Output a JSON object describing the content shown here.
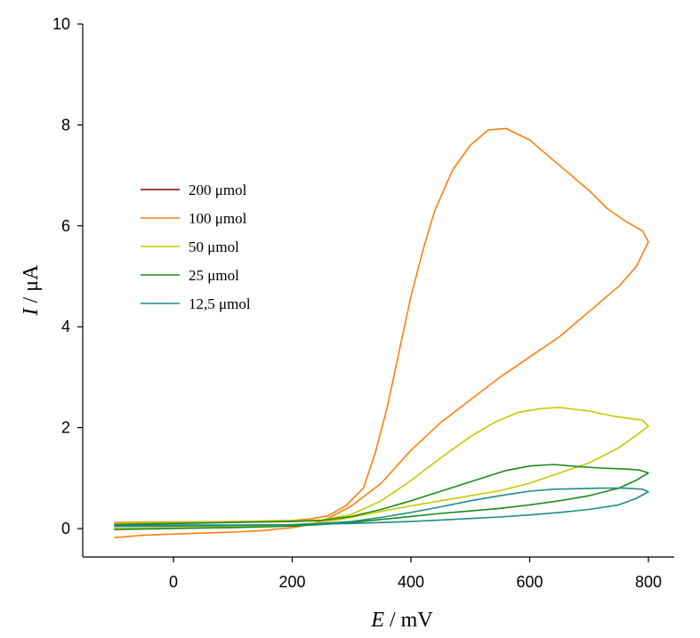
{
  "chart_data": {
    "type": "line",
    "xlabel": {
      "symbol": "E",
      "unit": " / mV"
    },
    "ylabel": {
      "symbol": "I",
      "unit": " / μA"
    },
    "xlim": [
      -150,
      880
    ],
    "ylim": [
      -0.55,
      10
    ],
    "xticks": [
      0,
      200,
      400,
      600,
      800
    ],
    "yticks": [
      0,
      2,
      4,
      6,
      8,
      10
    ],
    "grid": false,
    "legend_position": "center-left",
    "series": [
      {
        "name": "200 μmol",
        "color": "#800000",
        "points": []
      },
      {
        "name": "100 μmol",
        "color": "#ff7f0e",
        "points": [
          [
            -100,
            -0.18
          ],
          [
            -50,
            -0.13
          ],
          [
            0,
            -0.11
          ],
          [
            100,
            -0.07
          ],
          [
            150,
            -0.04
          ],
          [
            200,
            0.02
          ],
          [
            230,
            0.08
          ],
          [
            260,
            0.2
          ],
          [
            300,
            0.45
          ],
          [
            350,
            0.9
          ],
          [
            400,
            1.55
          ],
          [
            450,
            2.1
          ],
          [
            500,
            2.55
          ],
          [
            550,
            3.0
          ],
          [
            600,
            3.4
          ],
          [
            650,
            3.8
          ],
          [
            700,
            4.3
          ],
          [
            750,
            4.8
          ],
          [
            780,
            5.2
          ],
          [
            800,
            5.68
          ],
          [
            790,
            5.9
          ],
          [
            760,
            6.1
          ],
          [
            730,
            6.35
          ],
          [
            700,
            6.7
          ],
          [
            650,
            7.2
          ],
          [
            600,
            7.7
          ],
          [
            560,
            7.93
          ],
          [
            530,
            7.9
          ],
          [
            500,
            7.6
          ],
          [
            470,
            7.1
          ],
          [
            440,
            6.3
          ],
          [
            420,
            5.5
          ],
          [
            400,
            4.6
          ],
          [
            380,
            3.5
          ],
          [
            360,
            2.4
          ],
          [
            340,
            1.5
          ],
          [
            320,
            0.8
          ],
          [
            290,
            0.45
          ],
          [
            260,
            0.25
          ],
          [
            230,
            0.19
          ],
          [
            200,
            0.16
          ],
          [
            150,
            0.15
          ],
          [
            100,
            0.14
          ],
          [
            0,
            0.13
          ],
          [
            -100,
            0.12
          ]
        ]
      },
      {
        "name": "50 μmol",
        "color": "#c8c800",
        "points": [
          [
            -100,
            0.0
          ],
          [
            0,
            0.02
          ],
          [
            100,
            0.04
          ],
          [
            200,
            0.07
          ],
          [
            250,
            0.12
          ],
          [
            300,
            0.22
          ],
          [
            350,
            0.34
          ],
          [
            400,
            0.45
          ],
          [
            450,
            0.55
          ],
          [
            500,
            0.65
          ],
          [
            550,
            0.75
          ],
          [
            600,
            0.9
          ],
          [
            650,
            1.1
          ],
          [
            700,
            1.3
          ],
          [
            750,
            1.6
          ],
          [
            780,
            1.85
          ],
          [
            800,
            2.03
          ],
          [
            790,
            2.15
          ],
          [
            770,
            2.18
          ],
          [
            740,
            2.23
          ],
          [
            700,
            2.33
          ],
          [
            650,
            2.4
          ],
          [
            620,
            2.38
          ],
          [
            580,
            2.3
          ],
          [
            540,
            2.1
          ],
          [
            500,
            1.82
          ],
          [
            450,
            1.4
          ],
          [
            400,
            0.95
          ],
          [
            350,
            0.55
          ],
          [
            300,
            0.28
          ],
          [
            250,
            0.17
          ],
          [
            200,
            0.15
          ],
          [
            100,
            0.14
          ],
          [
            0,
            0.12
          ],
          [
            -100,
            0.1
          ]
        ]
      },
      {
        "name": "25 μmol",
        "color": "#1b8a1b",
        "points": [
          [
            -100,
            -0.02
          ],
          [
            0,
            0.0
          ],
          [
            100,
            0.02
          ],
          [
            200,
            0.05
          ],
          [
            250,
            0.08
          ],
          [
            300,
            0.12
          ],
          [
            350,
            0.18
          ],
          [
            400,
            0.24
          ],
          [
            450,
            0.3
          ],
          [
            500,
            0.35
          ],
          [
            550,
            0.4
          ],
          [
            600,
            0.47
          ],
          [
            650,
            0.55
          ],
          [
            700,
            0.65
          ],
          [
            750,
            0.8
          ],
          [
            780,
            0.96
          ],
          [
            800,
            1.1
          ],
          [
            785,
            1.16
          ],
          [
            760,
            1.18
          ],
          [
            720,
            1.2
          ],
          [
            680,
            1.23
          ],
          [
            640,
            1.27
          ],
          [
            600,
            1.24
          ],
          [
            560,
            1.15
          ],
          [
            520,
            1.0
          ],
          [
            480,
            0.85
          ],
          [
            440,
            0.7
          ],
          [
            400,
            0.55
          ],
          [
            350,
            0.38
          ],
          [
            300,
            0.24
          ],
          [
            250,
            0.16
          ],
          [
            200,
            0.14
          ],
          [
            100,
            0.12
          ],
          [
            0,
            0.1
          ],
          [
            -100,
            0.08
          ]
        ]
      },
      {
        "name": "12,5 μmol",
        "color": "#1f8a8a",
        "points": [
          [
            -100,
            0.04
          ],
          [
            0,
            0.05
          ],
          [
            100,
            0.06
          ],
          [
            200,
            0.08
          ],
          [
            300,
            0.1
          ],
          [
            400,
            0.14
          ],
          [
            450,
            0.17
          ],
          [
            500,
            0.2
          ],
          [
            550,
            0.23
          ],
          [
            600,
            0.27
          ],
          [
            650,
            0.32
          ],
          [
            700,
            0.38
          ],
          [
            750,
            0.47
          ],
          [
            780,
            0.6
          ],
          [
            800,
            0.73
          ],
          [
            790,
            0.78
          ],
          [
            760,
            0.8
          ],
          [
            720,
            0.8
          ],
          [
            680,
            0.79
          ],
          [
            640,
            0.78
          ],
          [
            600,
            0.74
          ],
          [
            550,
            0.65
          ],
          [
            500,
            0.55
          ],
          [
            450,
            0.43
          ],
          [
            400,
            0.32
          ],
          [
            350,
            0.22
          ],
          [
            300,
            0.14
          ],
          [
            250,
            0.1
          ],
          [
            200,
            0.08
          ],
          [
            100,
            0.07
          ],
          [
            0,
            0.07
          ],
          [
            -100,
            0.06
          ]
        ]
      }
    ]
  }
}
